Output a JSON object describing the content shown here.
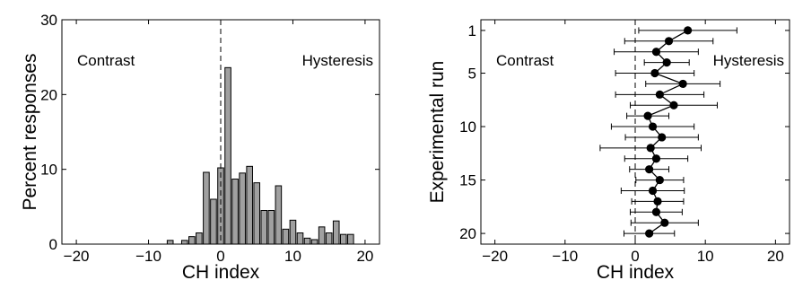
{
  "chart_data": [
    {
      "type": "bar",
      "xlabel": "CH index",
      "ylabel": "Percent responses",
      "xlim": [
        -22,
        22
      ],
      "ylim": [
        0,
        30
      ],
      "xticks": [
        -20,
        -10,
        0,
        10,
        20
      ],
      "yticks": [
        0,
        10,
        20,
        30
      ],
      "x": [
        -7,
        -5,
        -4,
        -3,
        -2,
        -1,
        0,
        1,
        2,
        3,
        4,
        5,
        6,
        7,
        8,
        9,
        10,
        11,
        12,
        13,
        14,
        15,
        16,
        17,
        18
      ],
      "values": [
        0.5,
        0.5,
        1.0,
        1.5,
        9.6,
        6.0,
        10.2,
        23.6,
        8.7,
        9.5,
        10.4,
        8.2,
        4.5,
        4.5,
        7.8,
        2.0,
        3.2,
        1.5,
        0.8,
        0.6,
        2.3,
        1.5,
        3.1,
        1.3,
        1.3
      ],
      "annotations": [
        "Contrast",
        "Hysteresis"
      ],
      "reference_line_x": 0
    },
    {
      "type": "scatter",
      "xlabel": "CH index",
      "ylabel": "Experimental run",
      "xlim": [
        -22,
        22
      ],
      "ylim": [
        21,
        0
      ],
      "xticks": [
        -20,
        -10,
        0,
        10,
        20
      ],
      "yticks": [
        1,
        5,
        10,
        15,
        20
      ],
      "y": [
        1,
        2,
        3,
        4,
        5,
        6,
        7,
        8,
        9,
        10,
        11,
        12,
        13,
        14,
        15,
        16,
        17,
        18,
        19,
        20
      ],
      "x": [
        7.5,
        4.8,
        3.0,
        4.5,
        2.8,
        6.8,
        3.5,
        5.5,
        1.8,
        2.5,
        3.8,
        2.2,
        3.0,
        2.0,
        3.5,
        2.5,
        3.2,
        3.0,
        4.2,
        2.0
      ],
      "xerr": [
        7.0,
        6.3,
        6.0,
        3.2,
        5.6,
        5.3,
        6.3,
        6.2,
        3.0,
        5.9,
        5.2,
        7.2,
        4.5,
        2.8,
        3.4,
        4.5,
        3.7,
        3.7,
        4.8,
        3.6
      ],
      "annotations": [
        "Contrast",
        "Hysteresis"
      ],
      "reference_line_x": 0
    }
  ]
}
